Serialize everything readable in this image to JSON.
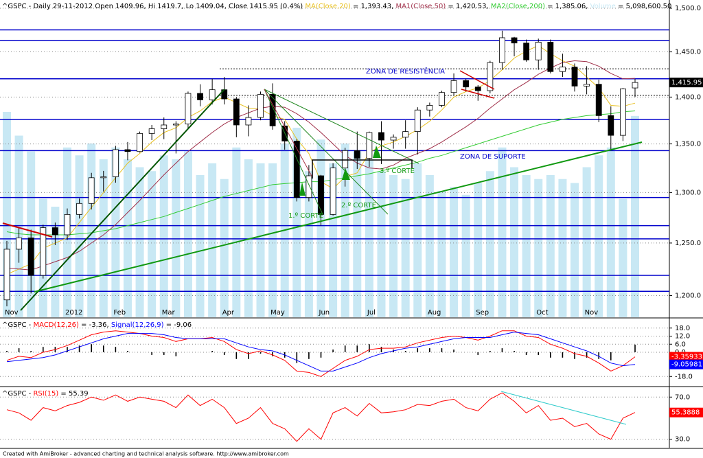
{
  "chart_data": [
    {
      "type": "candlestick",
      "header": [
        {
          "text": "^GSPC - Daily 29-11-2012 Open 1409.96, Hi 1419.7, Lo 1409.04, Close 1415.95 (0.4%) ",
          "color": "#000000"
        },
        {
          "text": "MA(Close,20)",
          "color": "#e8c020"
        },
        {
          "text": " = 1,393.43, ",
          "color": "#000000"
        },
        {
          "text": "MA1(Close,50)",
          "color": "#a0304a"
        },
        {
          "text": " = 1,420.53, ",
          "color": "#000000"
        },
        {
          "text": "MA2(Close,200)",
          "color": "#33cc33"
        },
        {
          "text": " = 1,385.06, ",
          "color": "#000000"
        },
        {
          "text": "Volume",
          "color": "#c8e8f4"
        },
        {
          "text": " = 5,098,600.50",
          "color": "#000000"
        }
      ],
      "categories": [
        "Nov",
        null,
        null,
        null,
        null,
        "2012",
        null,
        null,
        null,
        "Feb",
        null,
        null,
        null,
        "Mar",
        null,
        null,
        null,
        null,
        "Apr",
        null,
        null,
        null,
        "May",
        null,
        null,
        null,
        "Jun",
        null,
        null,
        null,
        "Jul",
        null,
        null,
        null,
        null,
        "Aug",
        null,
        null,
        null,
        "Sep",
        null,
        null,
        null,
        null,
        "Oct",
        null,
        null,
        null,
        "Nov",
        null,
        null,
        null,
        null
      ],
      "open": [
        1196,
        1244,
        1255,
        1219,
        1265,
        1258,
        1278,
        1289,
        1315,
        1316,
        1344,
        1342,
        1361,
        1366,
        1370,
        1371,
        1404,
        1397,
        1408,
        1398,
        1370,
        1378,
        1403,
        1369,
        1353,
        1295,
        1317,
        1278,
        1325,
        1343,
        1335,
        1362,
        1354,
        1357,
        1363,
        1386,
        1391,
        1405,
        1418,
        1411,
        1407,
        1438,
        1466,
        1460,
        1441,
        1461,
        1428,
        1433,
        1412,
        1414,
        1380,
        1359,
        1409.96
      ],
      "high": [
        1252,
        1265,
        1263,
        1268,
        1270,
        1284,
        1294,
        1320,
        1322,
        1348,
        1352,
        1363,
        1370,
        1378,
        1374,
        1406,
        1414,
        1420,
        1422,
        1400,
        1391,
        1406,
        1415,
        1374,
        1355,
        1328,
        1318,
        1330,
        1346,
        1363,
        1363,
        1374,
        1360,
        1375,
        1389,
        1394,
        1407,
        1426,
        1420,
        1413,
        1440,
        1474,
        1467,
        1464,
        1465,
        1464,
        1448,
        1437,
        1434,
        1419,
        1390,
        1410,
        1419.7
      ],
      "low": [
        1190,
        1231,
        1202,
        1216,
        1248,
        1253,
        1274,
        1283,
        1301,
        1310,
        1333,
        1341,
        1354,
        1355,
        1340,
        1366,
        1390,
        1392,
        1392,
        1357,
        1358,
        1375,
        1365,
        1344,
        1291,
        1291,
        1267,
        1277,
        1306,
        1324,
        1326,
        1329,
        1345,
        1345,
        1339,
        1379,
        1389,
        1402,
        1406,
        1396,
        1404,
        1430,
        1445,
        1439,
        1430,
        1426,
        1422,
        1406,
        1403,
        1373,
        1343,
        1353,
        1400
      ],
      "close": [
        1244,
        1255,
        1219,
        1265,
        1258,
        1278,
        1289,
        1315,
        1316,
        1344,
        1342,
        1361,
        1366,
        1370,
        1371,
        1404,
        1397,
        1408,
        1398,
        1370,
        1378,
        1403,
        1369,
        1353,
        1295,
        1317,
        1278,
        1325,
        1343,
        1335,
        1362,
        1354,
        1357,
        1363,
        1386,
        1391,
        1405,
        1418,
        1411,
        1407,
        1438,
        1466,
        1460,
        1441,
        1461,
        1428,
        1433,
        1412,
        1414,
        1380,
        1359,
        1409,
        1415.95
      ],
      "up_color": "#ffffff",
      "down_color": "#000000",
      "volume": [
        5200000,
        4600000,
        4200000,
        3000000,
        2800000,
        4300000,
        4100000,
        4400000,
        4000000,
        4300000,
        4000000,
        3800000,
        3700000,
        4100000,
        4000000,
        4200000,
        3600000,
        3900000,
        3500000,
        4300000,
        4000000,
        3900000,
        3900000,
        4400000,
        4800000,
        3700000,
        4500000,
        3900000,
        4400000,
        4200000,
        4000000,
        3700000,
        3600000,
        3500000,
        3900000,
        3600000,
        3200000,
        3300000,
        3100000,
        3400000,
        3700000,
        4300000,
        3800000,
        3600000,
        3500000,
        3600000,
        3500000,
        3400000,
        3800000,
        4100000,
        4300000,
        3000000,
        5098600.5
      ],
      "volume_color": "#c8e8f4",
      "vlim": [
        0,
        8000000
      ],
      "series": [
        {
          "color": "#e8c020",
          "values": [
            1220,
            1225,
            1230,
            1245,
            1250,
            1255,
            1270,
            1285,
            1300,
            1315,
            1330,
            1340,
            1352,
            1362,
            1367,
            1378,
            1385,
            1395,
            1400,
            1394,
            1388,
            1387,
            1380,
            1376,
            1355,
            1340,
            1311,
            1304,
            1316,
            1320,
            1341,
            1348,
            1352,
            1358,
            1365,
            1374,
            1386,
            1400,
            1406,
            1410,
            1418,
            1430,
            1443,
            1451,
            1457,
            1448,
            1440,
            1434,
            1422,
            1410,
            1391,
            1390,
            1393.43
          ]
        },
        {
          "color": "#a0304a",
          "values": [
            1226,
            1225,
            1224,
            1228,
            1232,
            1236,
            1242,
            1250,
            1258,
            1268,
            1280,
            1292,
            1305,
            1318,
            1330,
            1342,
            1352,
            1362,
            1371,
            1378,
            1383,
            1388,
            1390,
            1389,
            1382,
            1373,
            1362,
            1350,
            1338,
            1330,
            1325,
            1324,
            1328,
            1335,
            1340,
            1345,
            1352,
            1360,
            1368,
            1377,
            1388,
            1398,
            1408,
            1416,
            1425,
            1432,
            1438,
            1440,
            1439,
            1434,
            1426,
            1420,
            1420.53
          ]
        },
        {
          "color": "#33cc33",
          "values": [
            1261,
            1259,
            1258,
            1258,
            1258,
            1258,
            1259,
            1260,
            1262,
            1264,
            1267,
            1270,
            1273,
            1276,
            1280,
            1284,
            1288,
            1292,
            1296,
            1299,
            1302,
            1305,
            1308,
            1309,
            1310,
            1311,
            1311,
            1313,
            1315,
            1317,
            1319,
            1322,
            1325,
            1328,
            1331,
            1335,
            1338,
            1342,
            1346,
            1350,
            1354,
            1358,
            1362,
            1366,
            1370,
            1373,
            1376,
            1378,
            1380,
            1381,
            1382,
            1384,
            1385.06
          ]
        }
      ],
      "log": true,
      "ylim": [
        1180,
        1508
      ],
      "yticks": [
        {
          "value": 1200,
          "label": "1,200.0"
        },
        {
          "value": 1250,
          "label": "1,250.0"
        },
        {
          "value": 1300,
          "label": "1,300.0"
        },
        {
          "value": 1350,
          "label": "1,350.0"
        },
        {
          "value": 1400,
          "label": "1,400.0"
        },
        {
          "value": 1450,
          "label": "1,450.0"
        },
        {
          "value": 1500,
          "label": "1,500.0"
        }
      ],
      "grid": true,
      "levels": [
        1475,
        1463,
        1420,
        1376,
        1343,
        1295,
        1267,
        1254,
        1219,
        1204
      ],
      "level_color": "#0000cc",
      "dotted_levels": [
        1431,
        1402
      ],
      "tag": "1,415.95",
      "tag_color": "#000000",
      "annotations": [
        "ZONA DE RESISTÊNCIA",
        "ZONA DE SUPORTE",
        "1.º CORTE",
        "2.º CORTE",
        "3.º CORTE"
      ]
    },
    {
      "type": "line",
      "header": [
        {
          "text": "^GSPC - ",
          "color": "#000000"
        },
        {
          "text": "MACD(12,26)",
          "color": "#ff0000"
        },
        {
          "text": " = -3.36, ",
          "color": "#000000"
        },
        {
          "text": "Signal(12,26,9)",
          "color": "#0000ff"
        },
        {
          "text": " = -9.06",
          "color": "#000000"
        }
      ],
      "bars": {
        "color": "#000000",
        "values": [
          1,
          3,
          1,
          4,
          4,
          4,
          5,
          6,
          5,
          4,
          1,
          0,
          -2,
          -2,
          -3,
          0,
          0,
          1,
          -2,
          -5,
          -5,
          -1,
          -3,
          -4,
          -8,
          -5,
          -4,
          2,
          5,
          5,
          6,
          4,
          2,
          1,
          3,
          3,
          3,
          2,
          0,
          -2,
          1,
          3,
          1,
          -2,
          -2,
          -4,
          -4,
          -5,
          -4,
          -5,
          -6,
          0,
          5.70048
        ]
      },
      "series": [
        {
          "color": "#ff0000",
          "tag": "-3.35933",
          "values": [
            -6,
            -3,
            -4,
            0,
            2,
            5,
            9,
            13,
            15,
            16,
            15,
            14,
            12,
            11,
            8,
            10,
            10,
            11,
            8,
            2,
            -1,
            1,
            -2,
            -6,
            -14,
            -15,
            -18,
            -12,
            -6,
            -3,
            2,
            3,
            3,
            4,
            7,
            9,
            11,
            12,
            11,
            9,
            12,
            16,
            16,
            12,
            11,
            6,
            3,
            -1,
            -3,
            -8,
            -14,
            -10,
            -3.35933
          ]
        },
        {
          "color": "#0000ff",
          "tag": "-9.05981",
          "values": [
            -7,
            -6,
            -5,
            -4,
            -2,
            1,
            4,
            7,
            10,
            12,
            14,
            14,
            14,
            13,
            11,
            10,
            10,
            10,
            10,
            7,
            4,
            2,
            1,
            -2,
            -6,
            -10,
            -14,
            -14,
            -11,
            -8,
            -4,
            -1,
            1,
            3,
            4,
            6,
            8,
            10,
            11,
            11,
            11,
            13,
            15,
            14,
            13,
            10,
            7,
            4,
            1,
            -3,
            -8,
            -10,
            -9.05981
          ]
        }
      ],
      "ylim": [
        -24,
        24
      ],
      "yticks": [
        {
          "value": -18,
          "label": "-18.0"
        },
        {
          "value": 0,
          "label": "0.0"
        },
        {
          "value": 6,
          "label": "6.0"
        },
        {
          "value": 12,
          "label": "12.0"
        },
        {
          "value": 18,
          "label": "18.0"
        }
      ],
      "grid": true
    },
    {
      "type": "line",
      "header": [
        {
          "text": "^GSPC - ",
          "color": "#000000"
        },
        {
          "text": "RSI(15)",
          "color": "#ff0000"
        },
        {
          "text": " = 55.39",
          "color": "#000000"
        }
      ],
      "series": [
        {
          "color": "#ff0000",
          "tag": "55.3888",
          "values": [
            58,
            55,
            48,
            60,
            57,
            62,
            65,
            70,
            67,
            72,
            66,
            70,
            68,
            66,
            60,
            72,
            62,
            68,
            60,
            45,
            50,
            60,
            45,
            40,
            28,
            40,
            30,
            55,
            60,
            52,
            64,
            55,
            56,
            58,
            63,
            62,
            66,
            68,
            60,
            57,
            68,
            74,
            66,
            55,
            62,
            48,
            50,
            42,
            45,
            35,
            30,
            50,
            55.3888
          ]
        }
      ],
      "ylim": [
        22,
        78
      ],
      "yticks": [
        {
          "value": 30,
          "label": "30.0"
        },
        {
          "value": 70,
          "label": "70.0"
        }
      ],
      "grid": true
    }
  ],
  "footer": "Created with AmiBroker - advanced charting and technical analysis software. http://www.amibroker.com"
}
